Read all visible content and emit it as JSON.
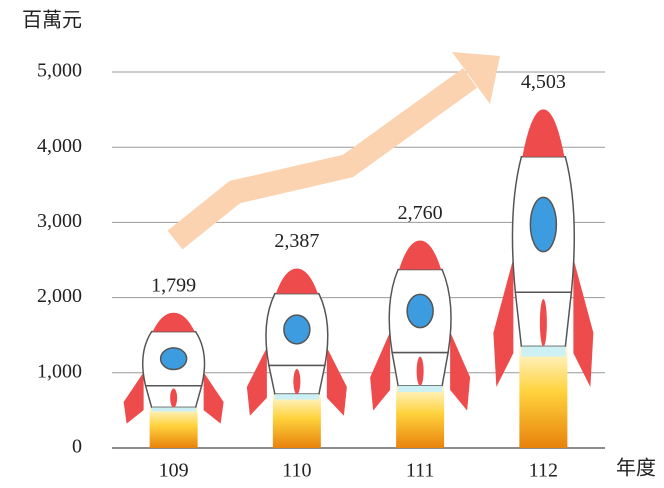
{
  "chart_data": {
    "type": "rocket",
    "y_unit_label": "百萬元",
    "x_axis_label": "年度",
    "categories": [
      "109",
      "110",
      "111",
      "112"
    ],
    "values": [
      1799,
      2387,
      2760,
      4503
    ],
    "value_labels": [
      "1,799",
      "2,387",
      "2,760",
      "4,503"
    ],
    "ylim": [
      0,
      5000
    ],
    "yticks": [
      0,
      {
        "value": 1000,
        "label": "1,000"
      },
      {
        "value": 2000,
        "label": "2,000"
      },
      {
        "value": 3000,
        "label": "3,000"
      },
      {
        "value": 4000,
        "label": "4,000"
      },
      {
        "value": 5000,
        "label": "5,000"
      }
    ],
    "grid": true
  }
}
